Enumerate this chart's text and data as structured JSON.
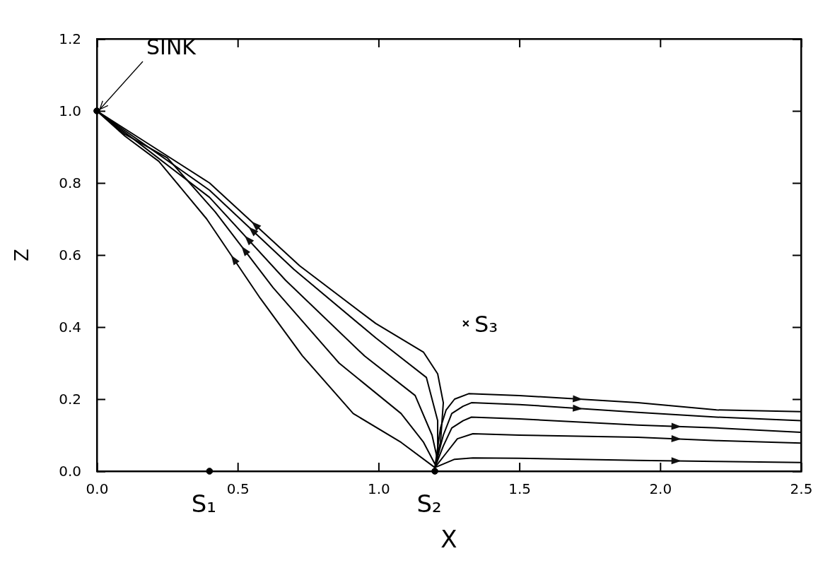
{
  "chart_data": {
    "type": "line",
    "xlabel": "X",
    "ylabel": "Z",
    "xlim": [
      0,
      2.5
    ],
    "ylim": [
      0,
      1.2
    ],
    "xticks": [
      {
        "value": 0,
        "label": "0.0"
      },
      {
        "value": 0.5,
        "label": "0.5"
      },
      {
        "value": 1,
        "label": "1.0"
      },
      {
        "value": 1.5,
        "label": "1.5"
      },
      {
        "value": 2,
        "label": "2.0"
      },
      {
        "value": 2.5,
        "label": "2.5"
      }
    ],
    "yticks": [
      {
        "value": 0,
        "label": "0.0"
      },
      {
        "value": 0.2,
        "label": "0.2"
      },
      {
        "value": 0.4,
        "label": "0.4"
      },
      {
        "value": 0.6,
        "label": "0.6"
      },
      {
        "value": 0.8,
        "label": "0.8"
      },
      {
        "value": 1,
        "label": "1.0"
      },
      {
        "value": 1.2,
        "label": "1.2"
      }
    ],
    "grid": false,
    "line_style": "solid",
    "series": [
      {
        "color": "#000000",
        "marker": "none",
        "x": [
          1.2,
          1.08,
          0.91,
          0.73,
          0.58,
          0.39,
          0.22,
          0.1,
          0
        ],
        "values": [
          0.01,
          0.08,
          0.16,
          0.32,
          0.48,
          0.7,
          0.86,
          0.93,
          1
        ]
      },
      {
        "color": "#000000",
        "marker": "none",
        "x": [
          1.2,
          1.16,
          1.08,
          0.86,
          0.625,
          0.42,
          0.25,
          0.1,
          0
        ],
        "values": [
          0.02,
          0.08,
          0.16,
          0.3,
          0.51,
          0.72,
          0.87,
          0.935,
          1
        ]
      },
      {
        "color": "#000000",
        "marker": "none",
        "x": [
          1.21,
          1.19,
          1.13,
          0.95,
          0.67,
          0.4,
          0.1,
          0
        ],
        "values": [
          0.03,
          0.1,
          0.21,
          0.32,
          0.53,
          0.76,
          0.94,
          1
        ]
      },
      {
        "color": "#000000",
        "marker": "none",
        "x": [
          1.21,
          1.21,
          1.17,
          0.99,
          0.7,
          0.4,
          0.1,
          0
        ],
        "values": [
          0.04,
          0.14,
          0.26,
          0.37,
          0.56,
          0.78,
          0.945,
          1
        ]
      },
      {
        "color": "#000000",
        "marker": "none",
        "x": [
          1.21,
          1.22,
          1.23,
          1.21,
          1.16,
          0.99,
          0.72,
          0.4,
          0.1,
          0
        ],
        "values": [
          0.05,
          0.08,
          0.19,
          0.27,
          0.33,
          0.41,
          0.57,
          0.8,
          0.95,
          1
        ]
      },
      {
        "color": "#000000",
        "marker": "none",
        "x": [
          1.2,
          1.22,
          1.24,
          1.27,
          1.32,
          1.5,
          1.92,
          2.2,
          2.5
        ],
        "values": [
          0.01,
          0.12,
          0.17,
          0.2,
          0.215,
          0.21,
          0.19,
          0.17,
          0.165
        ]
      },
      {
        "color": "#000000",
        "marker": "none",
        "x": [
          1.2,
          1.23,
          1.26,
          1.3,
          1.33,
          1.5,
          1.92,
          2.2,
          2.5
        ],
        "values": [
          0.01,
          0.1,
          0.16,
          0.18,
          0.19,
          0.185,
          0.163,
          0.15,
          0.14
        ]
      },
      {
        "color": "#000000",
        "marker": "none",
        "x": [
          1.2,
          1.23,
          1.26,
          1.3,
          1.33,
          1.5,
          1.92,
          2.2,
          2.5
        ],
        "values": [
          0.01,
          0.07,
          0.12,
          0.14,
          0.15,
          0.145,
          0.128,
          0.12,
          0.108
        ]
      },
      {
        "color": "#000000",
        "marker": "none",
        "x": [
          1.2,
          1.24,
          1.28,
          1.335,
          1.5,
          1.92,
          2.2,
          2.5
        ],
        "values": [
          0.01,
          0.05,
          0.09,
          0.104,
          0.1,
          0.094,
          0.085,
          0.078
        ]
      },
      {
        "color": "#000000",
        "marker": "none",
        "x": [
          1.2,
          1.23,
          1.27,
          1.335,
          1.5,
          1.92,
          2.2,
          2.5
        ],
        "values": [
          0.01,
          0.02,
          0.033,
          0.037,
          0.036,
          0.03,
          0.027,
          0.024
        ]
      },
      {
        "type": "scatter",
        "color": "#000000",
        "marker": "circle",
        "x": [
          0,
          0.4,
          1.2
        ],
        "values": [
          1,
          0,
          0
        ]
      },
      {
        "type": "scatter",
        "color": "#000000",
        "marker": "cross",
        "x": [
          1.31
        ],
        "values": [
          0.41
        ]
      }
    ],
    "annotations": [
      {
        "text": "SINK",
        "x": 0,
        "y": 1
      },
      {
        "text": "S₁",
        "x": 0.4,
        "y": 0
      },
      {
        "text": "S₂",
        "x": 1.2,
        "y": 0
      },
      {
        "text": "S₃",
        "x": 1.31,
        "y": 0.41
      }
    ]
  }
}
